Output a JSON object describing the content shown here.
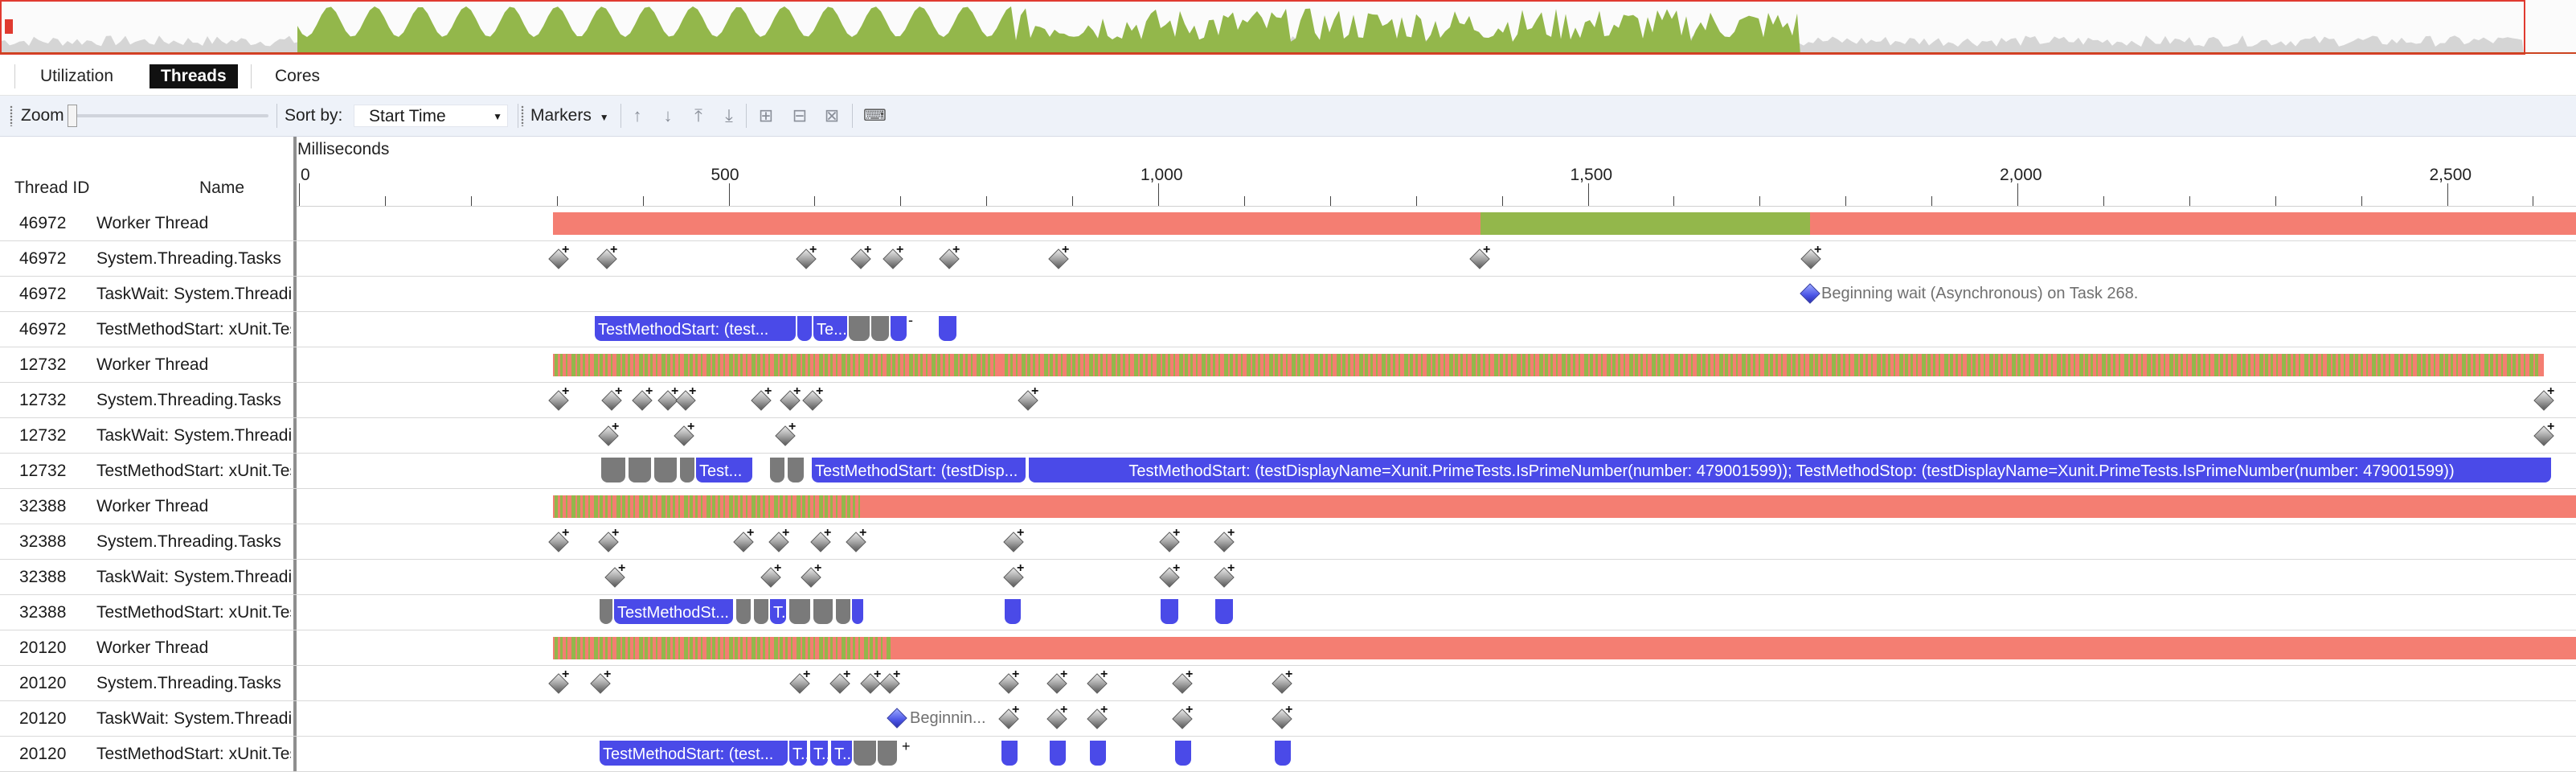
{
  "tabs": [
    {
      "label": "Utilization",
      "active": false
    },
    {
      "label": "Threads",
      "active": true
    },
    {
      "label": "Cores",
      "active": false
    }
  ],
  "toolbar": {
    "zoom_label": "Zoom",
    "sort_label": "Sort by:",
    "sort_value": "Start Time",
    "markers_label": "Markers",
    "icons": [
      "arrow-up-icon",
      "arrow-down-icon",
      "arrow-to-top-icon",
      "arrow-to-bottom-icon",
      "add-flag-icon",
      "remove-flag-icon",
      "clear-flags-icon",
      "keyboard-icon"
    ]
  },
  "columns": {
    "thread_id": "Thread ID",
    "name": "Name"
  },
  "ruler": {
    "unit": "Milliseconds",
    "ticks": [
      "0",
      "500",
      "1,000",
      "1,500",
      "2,000",
      "2,500"
    ]
  },
  "colors": {
    "running": "#93b74b",
    "blocked": "#f47e72",
    "span_blue": "#4a4ae8",
    "span_gray": "#7a7a7a",
    "accent": "#ee1c25"
  },
  "rows": [
    {
      "id": "46972",
      "name": "Worker Thread"
    },
    {
      "id": "46972",
      "name": "System.Threading.Tasks"
    },
    {
      "id": "46972",
      "name": "TaskWait: System.Threading.Tasks"
    },
    {
      "id": "46972",
      "name": "TestMethodStart: xUnit.Tests"
    },
    {
      "id": "12732",
      "name": "Worker Thread"
    },
    {
      "id": "12732",
      "name": "System.Threading.Tasks"
    },
    {
      "id": "12732",
      "name": "TaskWait: System.Threading.Tasks"
    },
    {
      "id": "12732",
      "name": "TestMethodStart: xUnit.Tests"
    },
    {
      "id": "32388",
      "name": "Worker Thread"
    },
    {
      "id": "32388",
      "name": "System.Threading.Tasks"
    },
    {
      "id": "32388",
      "name": "TaskWait: System.Threading.Tasks"
    },
    {
      "id": "32388",
      "name": "TestMethodStart: xUnit.Tests"
    },
    {
      "id": "20120",
      "name": "Worker Thread"
    },
    {
      "id": "20120",
      "name": "System.Threading.Tasks"
    },
    {
      "id": "20120",
      "name": "TaskWait: System.Threading.Tasks"
    },
    {
      "id": "20120",
      "name": "TestMethodStart: xUnit.Tests"
    }
  ],
  "labels": {
    "wait_46972": "Beginning wait (Asynchronous) on Task 268.",
    "span_46972_a": "TestMethodStart: (test...",
    "span_46972_b": "Te...",
    "span_12732_a": "Test...",
    "span_12732_b": "TestMethodStart: (testDisp...",
    "span_12732_c": "TestMethodStart: (testDisplayName=Xunit.PrimeTests.IsPrimeNumber(number: 479001599)); TestMethodStop: (testDisplayName=Xunit.PrimeTests.IsPrimeNumber(number: 479001599))",
    "span_32388_a": "TestMethodSt...",
    "span_32388_b": "T...",
    "wait_20120": "Beginnin...",
    "span_20120_a": "TestMethodStart: (test...",
    "span_20120_b": "T...",
    "span_20120_c": "T...",
    "span_20120_d": "T...",
    "span_20120_e": "T..."
  }
}
